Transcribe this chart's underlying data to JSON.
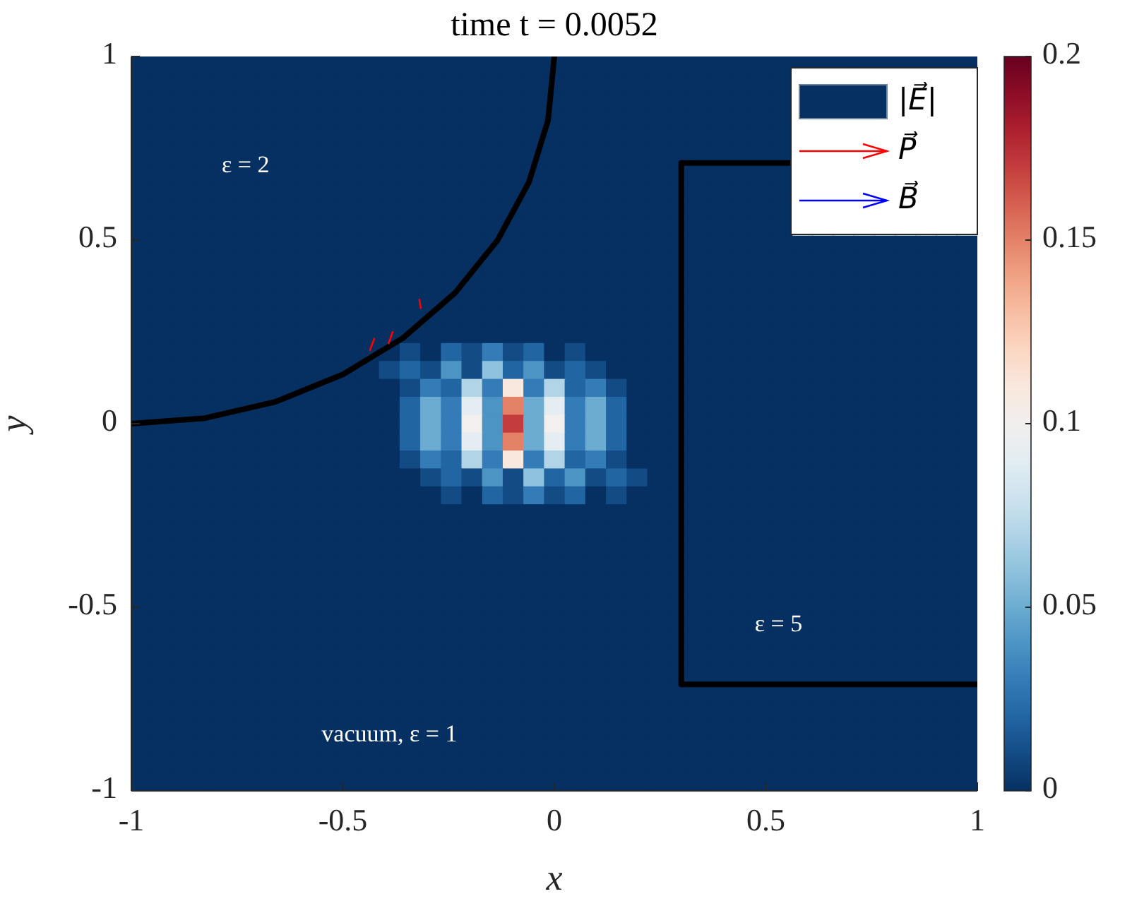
{
  "chart_data": {
    "type": "heatmap",
    "title": "time t = 0.0052",
    "xlabel": "x",
    "ylabel": "y",
    "xlim": [
      -1,
      1
    ],
    "ylim": [
      -1,
      1
    ],
    "xticks": [
      -1,
      -0.5,
      0,
      0.5,
      1
    ],
    "yticks": [
      -1,
      -0.5,
      0,
      0.5,
      1
    ],
    "clim": [
      0,
      0.2
    ],
    "cticks": [
      0,
      0.05,
      0.1,
      0.15,
      0.2
    ],
    "legend": "top right",
    "annotations": [
      "ε = 2",
      "ε = 5",
      "vacuum, ε = 1"
    ],
    "cells": [
      [
        0,
        0,
        0,
        0,
        0,
        0,
        0,
        0,
        0,
        0,
        0,
        0,
        0,
        0,
        0,
        0,
        0,
        0,
        0,
        0,
        0,
        0,
        0,
        0,
        0,
        0,
        0,
        0,
        0,
        0,
        0,
        0,
        0,
        0,
        0,
        0,
        0,
        0,
        0,
        0,
        0
      ],
      [
        0,
        0,
        0,
        0,
        0,
        0,
        0,
        0,
        0,
        0,
        0,
        0,
        0,
        0,
        0,
        0,
        0,
        0,
        0,
        0,
        0,
        0,
        0,
        0,
        0,
        0,
        0,
        0,
        0,
        0,
        0,
        0,
        null,
        null,
        null,
        null,
        null,
        null,
        null,
        null,
        null
      ],
      [
        0,
        0,
        0,
        0,
        0,
        0,
        0,
        0,
        0,
        0,
        0,
        0,
        0,
        0,
        0,
        0,
        0,
        0,
        0,
        0,
        0,
        0,
        0,
        0,
        0,
        0,
        0,
        0,
        0,
        0,
        0,
        0,
        null,
        null,
        null,
        null,
        null,
        null,
        null,
        null,
        null
      ],
      [
        0,
        0,
        0,
        0,
        0,
        0,
        0,
        0,
        0,
        0,
        0,
        0,
        0,
        0,
        0,
        0,
        0,
        0,
        0,
        0,
        0,
        0,
        0,
        0,
        0,
        0,
        0,
        0,
        0,
        0,
        0,
        0,
        null,
        null,
        null,
        null,
        null,
        null,
        null,
        null,
        null
      ],
      [
        0,
        0,
        0,
        0,
        0,
        0,
        0,
        0,
        0,
        0,
        0,
        0,
        0,
        0,
        0,
        0,
        0,
        0,
        0,
        0,
        0,
        0,
        0,
        0,
        0,
        0,
        0,
        0,
        0,
        0,
        0,
        0,
        null,
        null,
        null,
        null,
        null,
        null,
        null,
        null,
        null
      ],
      [
        0,
        0,
        0,
        0,
        0,
        0,
        0,
        0,
        0,
        0,
        0,
        0,
        0,
        0,
        0,
        0,
        0,
        0,
        0,
        0,
        0,
        0,
        0,
        0,
        0,
        0,
        0,
        0,
        0,
        0,
        0,
        0,
        null,
        null,
        null,
        null,
        null,
        null,
        null,
        null,
        null
      ],
      [
        0,
        0,
        0,
        0,
        0,
        0,
        0,
        0,
        0,
        0,
        0,
        0,
        0,
        0,
        0,
        0,
        0,
        0,
        0,
        0,
        0,
        0,
        0,
        0,
        0,
        0,
        0,
        0,
        0,
        0,
        0,
        0,
        null,
        null,
        null,
        null,
        null,
        null,
        null,
        null,
        null
      ],
      [
        0,
        0,
        0,
        0,
        0,
        0,
        0,
        0,
        0,
        0,
        0,
        0,
        0,
        0,
        0,
        0,
        0,
        0,
        0,
        0,
        0,
        0,
        0,
        0,
        0,
        0,
        0,
        0,
        0,
        0,
        0,
        0,
        null,
        null,
        null,
        null,
        null,
        null,
        null,
        null,
        null
      ],
      [
        0,
        0,
        0,
        0,
        0,
        0,
        0,
        0,
        0,
        0,
        0,
        0,
        0,
        0,
        0,
        0,
        0,
        0,
        0,
        0,
        0,
        0,
        0,
        0,
        0,
        0,
        0,
        0,
        0,
        0,
        0,
        0,
        null,
        null,
        null,
        null,
        null,
        null,
        null,
        null,
        null
      ],
      [
        0,
        0,
        0,
        0,
        0,
        0,
        0,
        0,
        0,
        0,
        0,
        0,
        0,
        0,
        0,
        0,
        0,
        0,
        0,
        0,
        0,
        0,
        0,
        0,
        0,
        0,
        0,
        0,
        0,
        0,
        0,
        0,
        null,
        null,
        null,
        null,
        null,
        null,
        null,
        null,
        null
      ],
      [
        0,
        0,
        0,
        0,
        0,
        0,
        0,
        0,
        0,
        0,
        0,
        0,
        0,
        0,
        0,
        0,
        0,
        0,
        0,
        0,
        0,
        0,
        0,
        0,
        0,
        0,
        0,
        0,
        0,
        0,
        0,
        0,
        0,
        0,
        0,
        0,
        0,
        0,
        0,
        0,
        0
      ],
      [
        0,
        0,
        0,
        0,
        0,
        0,
        0,
        0,
        0,
        0,
        0,
        0,
        0,
        0,
        0,
        0,
        0,
        0,
        0,
        0,
        0,
        0,
        0,
        0,
        0,
        0,
        0,
        0,
        0,
        0,
        0,
        0,
        0,
        0,
        0,
        0,
        0,
        0,
        0,
        0,
        0
      ],
      [
        0,
        0,
        0,
        0,
        0,
        0,
        0,
        0,
        0,
        0,
        0,
        0,
        0,
        0,
        0,
        0,
        0,
        0,
        0,
        0,
        0,
        0,
        0,
        0,
        0,
        0,
        0,
        0,
        0,
        0,
        0,
        0,
        0,
        0,
        0,
        0,
        0,
        0,
        0,
        0,
        0
      ],
      [
        0,
        0,
        0,
        0,
        0,
        0,
        0,
        0,
        0,
        0,
        0,
        0,
        0,
        0,
        0,
        0,
        0,
        0,
        0,
        0,
        0,
        0,
        0,
        0,
        0,
        0,
        0,
        0,
        0,
        0,
        0,
        0,
        0,
        0,
        0,
        0,
        0,
        0,
        0,
        0,
        0
      ],
      [
        0,
        0,
        0,
        0,
        0,
        0,
        0,
        0,
        0,
        0,
        0,
        0,
        0,
        0,
        0,
        0,
        0,
        0,
        0,
        0,
        0,
        0,
        0,
        0,
        0,
        0,
        0,
        0,
        0,
        0,
        0,
        0,
        0,
        0,
        0,
        0,
        0,
        0,
        0,
        0,
        0
      ],
      [
        0,
        0,
        0,
        0,
        0,
        0,
        0,
        0,
        0,
        0,
        0,
        0,
        0,
        0,
        0,
        0,
        0,
        0,
        0,
        0,
        0,
        0,
        0,
        0,
        0,
        0,
        0,
        0,
        0,
        0,
        0,
        0,
        0,
        0,
        0,
        0,
        0,
        0,
        0,
        0,
        0
      ],
      [
        0,
        0,
        0,
        0,
        0,
        0,
        0,
        0,
        0,
        0,
        0,
        0,
        0,
        0.01,
        0,
        0.02,
        0.01,
        0.03,
        0.01,
        0.02,
        0,
        0.01,
        0,
        0,
        0,
        0,
        0,
        0,
        0,
        0,
        0,
        0,
        0,
        0,
        0,
        0,
        0,
        0,
        0,
        0,
        0
      ],
      [
        0,
        0,
        0,
        0,
        0,
        0,
        0,
        0,
        0,
        0,
        0,
        0,
        0.01,
        0.02,
        0.01,
        0.04,
        0.01,
        0.06,
        0.02,
        0.04,
        0.01,
        0.02,
        0.01,
        0,
        0,
        0,
        0,
        0,
        0,
        0,
        0,
        0,
        0,
        0,
        0,
        0,
        0,
        0,
        0,
        0,
        0
      ],
      [
        0,
        0,
        0,
        0,
        0,
        0,
        0,
        0,
        0,
        0,
        0,
        0,
        0,
        0.01,
        0.03,
        0.02,
        0.07,
        0.03,
        0.11,
        0.03,
        0.07,
        0.02,
        0.03,
        0.01,
        0,
        0,
        0,
        0,
        0,
        0,
        0,
        0,
        0,
        0,
        0,
        0,
        0,
        0,
        0,
        0,
        0
      ],
      [
        0,
        0,
        0,
        0,
        0,
        0,
        0,
        0,
        0,
        0,
        0,
        0,
        0,
        0.02,
        0.05,
        0.03,
        0.09,
        0.04,
        0.15,
        0.05,
        0.09,
        0.03,
        0.05,
        0.02,
        0,
        0,
        0,
        0,
        0,
        0,
        0,
        0,
        0,
        0,
        0,
        0,
        0,
        0,
        0,
        0,
        0
      ],
      [
        0,
        0,
        0,
        0,
        0,
        0,
        0,
        0,
        0,
        0,
        0,
        0,
        0,
        0.02,
        0.05,
        0.03,
        0.1,
        0.04,
        0.17,
        0.05,
        0.1,
        0.03,
        0.05,
        0.02,
        0,
        0,
        0,
        0,
        0,
        0,
        0,
        0,
        0,
        0,
        0,
        0,
        0,
        0,
        0,
        0,
        0
      ],
      [
        0,
        0,
        0,
        0,
        0,
        0,
        0,
        0,
        0,
        0,
        0,
        0,
        0,
        0.02,
        0.05,
        0.03,
        0.09,
        0.04,
        0.15,
        0.05,
        0.09,
        0.03,
        0.05,
        0.02,
        0,
        0,
        0,
        0,
        0,
        0,
        0,
        0,
        0,
        0,
        0,
        0,
        0,
        0,
        0,
        0,
        0
      ],
      [
        0,
        0,
        0,
        0,
        0,
        0,
        0,
        0,
        0,
        0,
        0,
        0,
        0,
        0.01,
        0.03,
        0.02,
        0.07,
        0.03,
        0.11,
        0.03,
        0.07,
        0.02,
        0.03,
        0.01,
        0,
        0,
        0,
        0,
        0,
        0,
        0,
        0,
        0,
        0,
        0,
        0,
        0,
        0,
        0,
        0,
        0
      ],
      [
        0,
        0,
        0,
        0,
        0,
        0,
        0,
        0,
        0,
        0,
        0,
        0,
        0,
        0,
        0.01,
        0.02,
        0.01,
        0.04,
        0.01,
        0.06,
        0.02,
        0.04,
        0.01,
        0.02,
        0.01,
        0,
        0,
        0,
        0,
        0,
        0,
        0,
        0,
        0,
        0,
        0,
        0,
        0,
        0,
        0,
        0
      ],
      [
        0,
        0,
        0,
        0,
        0,
        0,
        0,
        0,
        0,
        0,
        0,
        0,
        0,
        0,
        0,
        0.01,
        0,
        0.02,
        0.01,
        0.03,
        0.01,
        0.02,
        0,
        0.01,
        0,
        0,
        0,
        0,
        0,
        0,
        0,
        0,
        0,
        0,
        0,
        0,
        0,
        0,
        0,
        0,
        0
      ],
      [
        0,
        0,
        0,
        0,
        0,
        0,
        0,
        0,
        0,
        0,
        0,
        0,
        0,
        0,
        0,
        0,
        0,
        0,
        0,
        0,
        0,
        0,
        0,
        0,
        0,
        0,
        0,
        0,
        0,
        0,
        0,
        0,
        0,
        0,
        0,
        0,
        0,
        0,
        0,
        0,
        0
      ],
      [
        0,
        0,
        0,
        0,
        0,
        0,
        0,
        0,
        0,
        0,
        0,
        0,
        0,
        0,
        0,
        0,
        0,
        0,
        0,
        0,
        0,
        0,
        0,
        0,
        0,
        0,
        0,
        0,
        0,
        0,
        0,
        0,
        0,
        0,
        0,
        0,
        0,
        0,
        0,
        0,
        0
      ],
      [
        0,
        0,
        0,
        0,
        0,
        0,
        0,
        0,
        0,
        0,
        0,
        0,
        0,
        0,
        0,
        0,
        0,
        0,
        0,
        0,
        0,
        0,
        0,
        0,
        0,
        0,
        0,
        0,
        0,
        0,
        0,
        0,
        0,
        0,
        0,
        0,
        0,
        0,
        0,
        0,
        0
      ],
      [
        0,
        0,
        0,
        0,
        0,
        0,
        0,
        0,
        0,
        0,
        0,
        0,
        0,
        0,
        0,
        0,
        0,
        0,
        0,
        0,
        0,
        0,
        0,
        0,
        0,
        0,
        0,
        0,
        0,
        0,
        0,
        0,
        0,
        0,
        0,
        0,
        0,
        0,
        0,
        0,
        0
      ],
      [
        0,
        0,
        0,
        0,
        0,
        0,
        0,
        0,
        0,
        0,
        0,
        0,
        0,
        0,
        0,
        0,
        0,
        0,
        0,
        0,
        0,
        0,
        0,
        0,
        0,
        0,
        0,
        0,
        0,
        0,
        0,
        0,
        0,
        0,
        0,
        0,
        0,
        0,
        0,
        0,
        0
      ],
      [
        0,
        0,
        0,
        0,
        0,
        0,
        0,
        0,
        0,
        0,
        0,
        0,
        0,
        0,
        0,
        0,
        0,
        0,
        0,
        0,
        0,
        0,
        0,
        0,
        0,
        0,
        0,
        0,
        0,
        0,
        0,
        0,
        0,
        0,
        0,
        0,
        0,
        0,
        0,
        0,
        0
      ],
      [
        0,
        0,
        0,
        0,
        0,
        0,
        0,
        0,
        0,
        0,
        0,
        0,
        0,
        0,
        0,
        0,
        0,
        0,
        0,
        0,
        0,
        0,
        0,
        0,
        0,
        0,
        0,
        0,
        0,
        0,
        0,
        0,
        0,
        0,
        0,
        0,
        0,
        0,
        0,
        0,
        0
      ],
      [
        0,
        0,
        0,
        0,
        0,
        0,
        0,
        0,
        0,
        0,
        0,
        0,
        0,
        0,
        0,
        0,
        0,
        0,
        0,
        0,
        0,
        0,
        0,
        0,
        0,
        0,
        0,
        0,
        0,
        0,
        0,
        0,
        0,
        0,
        0,
        0,
        0,
        0,
        0,
        0,
        0
      ],
      [
        0,
        0,
        0,
        0,
        0,
        0,
        0,
        0,
        0,
        0,
        0,
        0,
        0,
        0,
        0,
        0,
        0,
        0,
        0,
        0,
        0,
        0,
        0,
        0,
        0,
        0,
        0,
        0,
        0,
        0,
        0,
        0,
        0,
        0,
        0,
        0,
        0,
        0,
        0,
        0,
        0
      ],
      [
        0,
        0,
        0,
        0,
        0,
        0,
        0,
        0,
        0,
        0,
        0,
        0,
        0,
        0,
        0,
        0,
        0,
        0,
        0,
        0,
        0,
        0,
        0,
        0,
        0,
        0,
        0,
        0,
        0,
        0,
        0,
        0,
        0,
        0,
        0,
        0,
        0,
        0,
        0,
        0,
        0
      ],
      [
        0,
        0,
        0,
        0,
        0,
        0,
        0,
        0,
        0,
        0,
        0,
        0,
        0,
        0,
        0,
        0,
        0,
        0,
        0,
        0,
        0,
        0,
        0,
        0,
        0,
        0,
        0,
        0,
        0,
        0,
        0,
        0,
        0,
        0,
        0,
        0,
        0,
        0,
        0,
        0,
        0
      ],
      [
        0,
        0,
        0,
        0,
        0,
        0,
        0,
        0,
        0,
        0,
        0,
        0,
        0,
        0,
        0,
        0,
        0,
        0,
        0,
        0,
        0,
        0,
        0,
        0,
        0,
        0,
        0,
        0,
        0,
        0,
        0,
        0,
        0,
        0,
        0,
        0,
        0,
        0,
        0,
        0,
        0
      ],
      [
        0,
        0,
        0,
        0,
        0,
        0,
        0,
        0,
        0,
        0,
        0,
        0,
        0,
        0,
        0,
        0,
        0,
        0,
        0,
        0,
        0,
        0,
        0,
        0,
        0,
        0,
        0,
        0,
        0,
        0,
        0,
        0,
        0,
        0,
        0,
        0,
        0,
        0,
        0,
        0,
        0
      ],
      [
        0,
        0,
        0,
        0,
        0,
        0,
        0,
        0,
        0,
        0,
        0,
        0,
        0,
        0,
        0,
        0,
        0,
        0,
        0,
        0,
        0,
        0,
        0,
        0,
        0,
        0,
        0,
        0,
        0,
        0,
        0,
        0,
        0,
        0,
        0,
        0,
        0,
        0,
        0,
        0,
        0
      ],
      [
        0,
        0,
        0,
        0,
        0,
        0,
        0,
        0,
        0,
        0,
        0,
        0,
        0,
        0,
        0,
        0,
        0,
        0,
        0,
        0,
        0,
        0,
        0,
        0,
        0,
        0,
        0,
        0,
        0,
        0,
        0,
        0,
        0,
        0,
        0,
        0,
        0,
        0,
        0,
        0,
        0
      ],
      [
        0,
        0,
        0,
        0,
        0,
        0,
        0,
        0,
        0,
        0,
        0,
        0,
        0,
        0,
        0,
        0,
        0,
        0,
        0,
        0,
        0,
        0,
        0,
        0,
        0,
        0,
        0,
        0,
        0,
        0,
        0,
        0,
        0,
        0,
        0,
        0,
        0,
        0,
        0,
        0,
        0
      ]
    ],
    "series": [
      {
        "type": "heatmap",
        "name": "|E⃗|",
        "color": "#053061"
      },
      {
        "type": "line",
        "color": "#000000",
        "x": [
          -1,
          -0.826,
          -0.658,
          -0.5,
          -0.357,
          -0.234,
          -0.134,
          -0.06,
          -0.015,
          0
        ],
        "values": [
          0,
          0.015,
          0.06,
          0.134,
          0.234,
          0.357,
          0.5,
          0.658,
          0.826,
          1
        ]
      },
      {
        "type": "line",
        "color": "#000000",
        "x": [
          1,
          0.3,
          0.3,
          1
        ],
        "values": [
          0.71,
          0.71,
          -0.71,
          -0.71
        ]
      },
      {
        "type": "line",
        "name": "P⃗",
        "color": "#ff0000",
        "x": [
          -0.426,
          -0.436,
          -0.43,
          -0.382,
          -0.392,
          -0.39,
          -0.319,
          -0.316
        ],
        "values": [
          0.231,
          0.2,
          null,
          0.25,
          0.219,
          null,
          0.338,
          0.315
        ]
      },
      {
        "type": "line",
        "name": "B⃗",
        "color": "#0000ff"
      }
    ]
  }
}
